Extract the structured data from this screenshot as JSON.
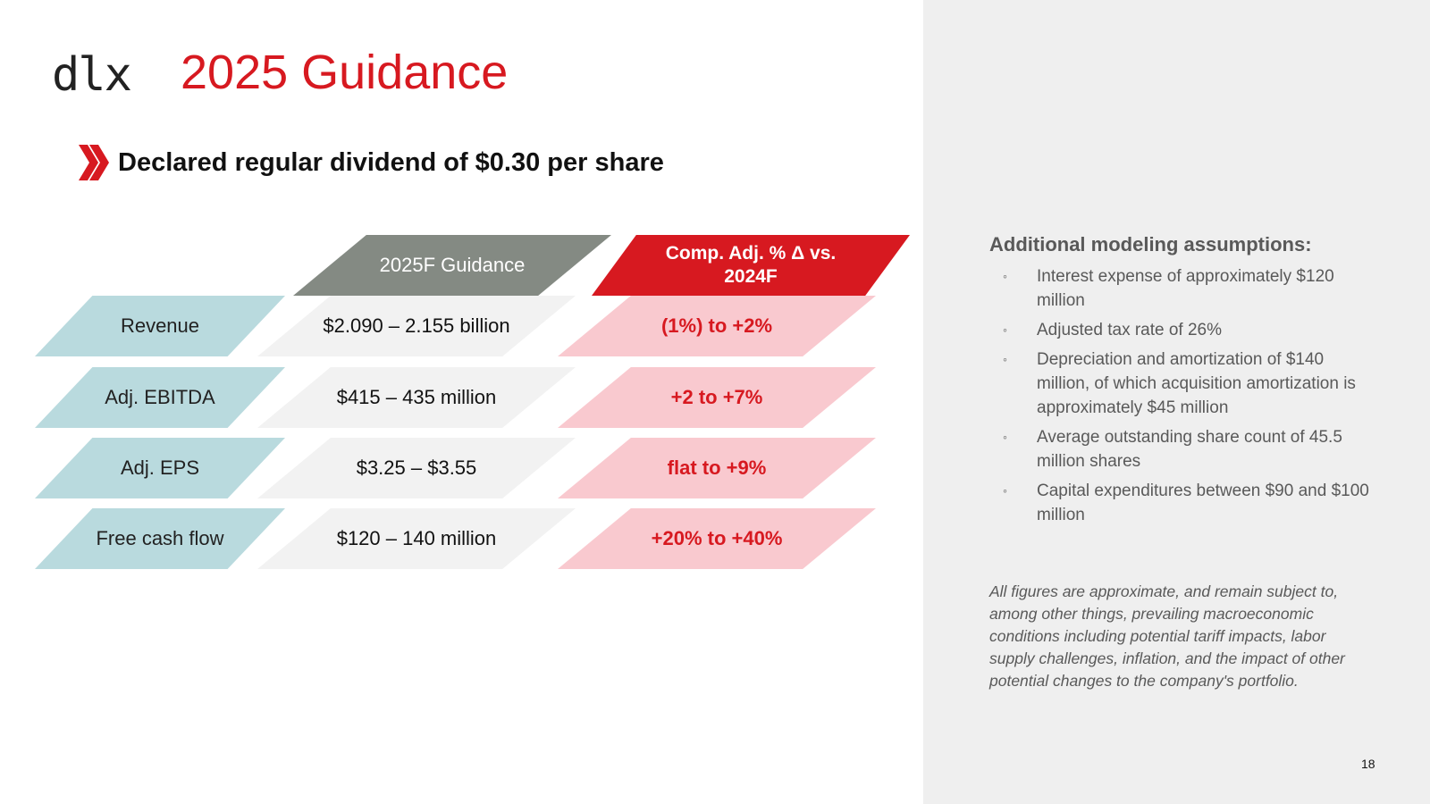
{
  "logo": "dlx",
  "title": "2025 Guidance",
  "subhead": "Declared regular dividend of $0.30 per share",
  "table": {
    "col_guidance": "2025F Guidance",
    "col_delta_line1": "Comp. Adj. % Δ vs.",
    "col_delta_line2": "2024F",
    "rows": [
      {
        "label": "Revenue",
        "value": "$2.090 – 2.155 billion",
        "delta": "(1%) to +2%"
      },
      {
        "label": "Adj. EBITDA",
        "value": "$415 – 435 million",
        "delta": "+2 to +7%"
      },
      {
        "label": "Adj. EPS",
        "value": "$3.25 – $3.55",
        "delta": "flat to +9%"
      },
      {
        "label": "Free cash flow",
        "value": "$120 – 140 million",
        "delta": "+20% to +40%"
      }
    ]
  },
  "assumptions": {
    "title": "Additional modeling assumptions:",
    "bullet": "◦",
    "items": [
      "Interest expense of approximately $120 million",
      "Adjusted tax rate of 26%",
      "Depreciation and amortization of $140 million, of which acquisition amortization is approximately $45 million",
      "Average outstanding share count of 45.5 million shares",
      "Capital expenditures between $90 and $100 million"
    ]
  },
  "note": "All figures are approximate, and remain subject to, among other things, prevailing macroeconomic conditions including potential tariff impacts, labor supply challenges, inflation, and the impact of other potential changes to the company's portfolio.",
  "page_number": "18",
  "colors": {
    "accent_red": "#d71920",
    "teal_label": "#b9dade",
    "grey_header": "#848a83",
    "pink_delta": "#f9c9cf"
  }
}
